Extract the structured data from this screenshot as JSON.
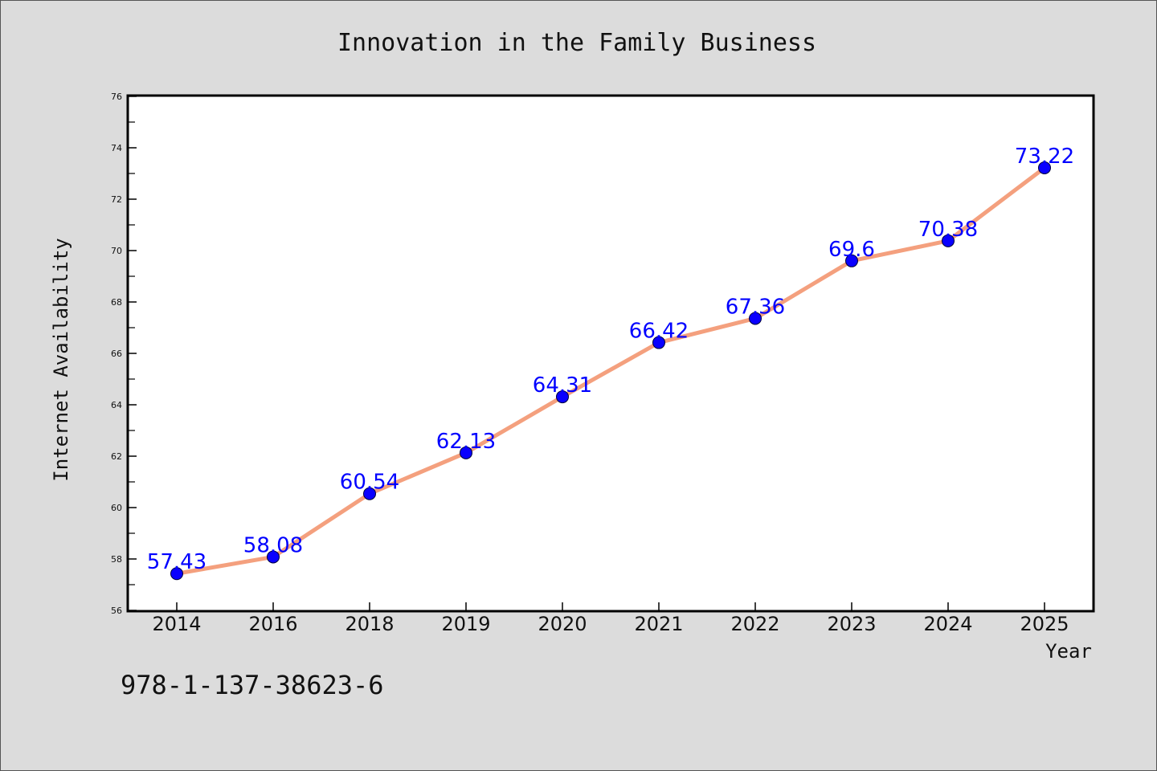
{
  "chart_data": {
    "type": "line",
    "title": "Innovation in the Family Business",
    "xlabel": "Year",
    "ylabel": "Internet Availability",
    "categories": [
      "2014",
      "2016",
      "2018",
      "2019",
      "2020",
      "2021",
      "2022",
      "2023",
      "2024",
      "2025"
    ],
    "series": [
      {
        "values": [
          57.43,
          58.08,
          60.54,
          62.13,
          64.31,
          66.42,
          67.36,
          69.6,
          70.38,
          73.22
        ],
        "data_labels": [
          "57.43",
          "58.08",
          "60.54",
          "62.13",
          "64.31",
          "66.42",
          "67.36",
          "69.6",
          "70.38",
          "73.22"
        ]
      }
    ],
    "ylim": [
      56,
      76
    ],
    "yticks": [
      "56",
      "58",
      "60",
      "62",
      "64",
      "66",
      "68",
      "70",
      "72",
      "74",
      "76"
    ],
    "grid": false,
    "legend": "none",
    "colors": {
      "line": "#f4a07e",
      "marker": "#0a00ff",
      "marker_edge": "#00003a",
      "data_label": "#0000ff",
      "plot_background": "#ffffff",
      "figure_background": "#dcdcdc"
    }
  },
  "footer": {
    "isbn": "978-1-137-38623-6"
  }
}
